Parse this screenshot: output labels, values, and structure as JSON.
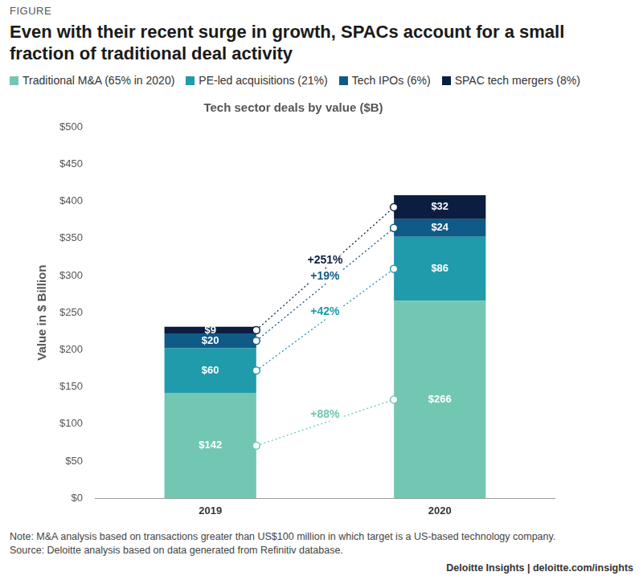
{
  "figure_label": "FIGURE",
  "chart_data": {
    "type": "bar",
    "title": "Even with their recent surge in growth, SPACs account for a small fraction of traditional deal activity",
    "subtitle": "Tech sector deals by value ($B)",
    "y_label": "Value in $ Billion",
    "categories": [
      "2019",
      "2020"
    ],
    "stacked": true,
    "data_labels": true,
    "grid": false,
    "legend": "top",
    "series": [
      {
        "name": "Traditional M&A (65% in 2020)",
        "color": "#72c7b2",
        "values": [
          142,
          266
        ],
        "value_labels": [
          "$142",
          "$266"
        ]
      },
      {
        "name": "PE-led acquisitions (21%)",
        "color": "#1f9bab",
        "values": [
          60,
          86
        ],
        "value_labels": [
          "$60",
          "$86"
        ]
      },
      {
        "name": "Tech IPOs (6%)",
        "color": "#0f5a86",
        "values": [
          20,
          24
        ],
        "value_labels": [
          "$20",
          "$24"
        ]
      },
      {
        "name": "SPAC tech mergers (8%)",
        "color": "#0b1d40",
        "values": [
          9,
          32
        ],
        "value_labels": [
          "$9",
          "$32"
        ]
      }
    ],
    "ylim": [
      0,
      500
    ],
    "yticks": [
      {
        "value": 0,
        "label": "$0"
      },
      {
        "value": 50,
        "label": "$50"
      },
      {
        "value": 100,
        "label": "$100"
      },
      {
        "value": 150,
        "label": "$150"
      },
      {
        "value": 200,
        "label": "$200"
      },
      {
        "value": 250,
        "label": "$250"
      },
      {
        "value": 300,
        "label": "$300"
      },
      {
        "value": 350,
        "label": "$350"
      },
      {
        "value": 400,
        "label": "$400"
      },
      {
        "value": 450,
        "label": "$450"
      },
      {
        "value": 500,
        "label": "$500"
      }
    ],
    "annotations": [
      {
        "series": "SPAC tech mergers (8%)",
        "text": "+251%"
      },
      {
        "series": "Tech IPOs (6%)",
        "text": "+19%"
      },
      {
        "series": "PE-led acquisitions (21%)",
        "text": "+42%"
      },
      {
        "series": "Traditional M&A (65% in 2020)",
        "text": "+88%"
      }
    ]
  },
  "note": "Note: M&A analysis based on transactions greater than US$100 million in which target is a US-based technology company.",
  "source": "Source: Deloitte analysis based on data generated from Refinitiv database.",
  "credit": "Deloitte Insights | deloitte.com/insights"
}
